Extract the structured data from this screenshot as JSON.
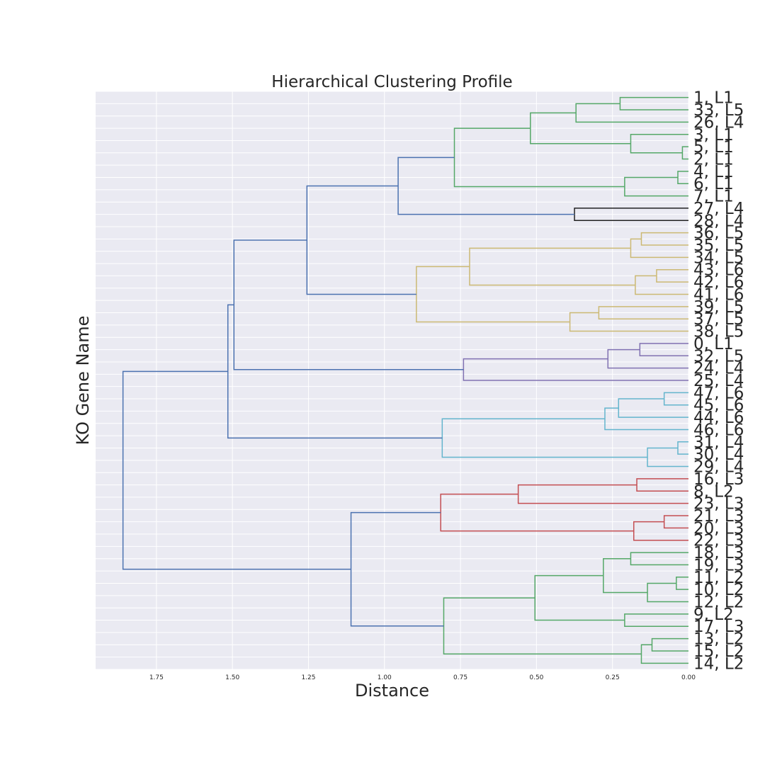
{
  "chart_data": {
    "type": "dendrogram",
    "title": "Hierarchical Clustering Profile",
    "xlabel": "Distance",
    "ylabel": "KO Gene Name",
    "orientation": "left",
    "xlim": [
      1.95,
      0.0
    ],
    "xticks": [
      1.75,
      1.5,
      1.25,
      1.0,
      0.75,
      0.5,
      0.25,
      0.0
    ],
    "xtick_labels": [
      "1.75",
      "1.50",
      "1.25",
      "1.00",
      "0.75",
      "0.50",
      "0.25",
      "0.00"
    ],
    "grid": true,
    "colors": {
      "background": "#eaeaf2",
      "grid": "#ffffff",
      "root": "#4c72b0",
      "green": "#55a868",
      "black": "#222222",
      "yellow": "#ccb974",
      "purple": "#8172b2",
      "cyan": "#64b5cd",
      "red": "#c44e52"
    },
    "leaves": [
      "1, L1",
      "33, L5",
      "26, L4",
      "3, L1",
      "5, L1",
      "2, L1",
      "4, L1",
      "6, L1",
      "7, L1",
      "27, L4",
      "28, L4",
      "36, L5",
      "35, L5",
      "34, L5",
      "43, L6",
      "42, L6",
      "41, L6",
      "39, L5",
      "37, L5",
      "38, L5",
      "0, L1",
      "32, L5",
      "24, L4",
      "25, L4",
      "47, L6",
      "45, L6",
      "44, L6",
      "46, L6",
      "31, L4",
      "30, L4",
      "29, L4",
      "16, L3",
      "8, L2",
      "23, L3",
      "21, L3",
      "20, L3",
      "22, L3",
      "18, L3",
      "19, L3",
      "11, L2",
      "10, L2",
      "12, L2",
      "9, L2",
      "17, L3",
      "13, L2",
      "15, L2",
      "14, L2"
    ],
    "merges": [
      {
        "id": "A1",
        "a": "1, L1",
        "b": "33, L5",
        "d": 0.225,
        "color": "green"
      },
      {
        "id": "A2",
        "a": "A1",
        "b": "26, L4",
        "d": 0.37,
        "color": "green"
      },
      {
        "id": "A3",
        "a": "5, L1",
        "b": "2, L1",
        "d": 0.02,
        "color": "green"
      },
      {
        "id": "A4",
        "a": "3, L1",
        "b": "A3",
        "d": 0.19,
        "color": "green"
      },
      {
        "id": "A5",
        "a": "A2",
        "b": "A4",
        "d": 0.52,
        "color": "green"
      },
      {
        "id": "A6",
        "a": "4, L1",
        "b": "6, L1",
        "d": 0.035,
        "color": "green"
      },
      {
        "id": "A7",
        "a": "A6",
        "b": "7, L1",
        "d": 0.21,
        "color": "green"
      },
      {
        "id": "A8",
        "a": "A5",
        "b": "A7",
        "d": 0.77,
        "color": "green"
      },
      {
        "id": "B1",
        "a": "27, L4",
        "b": "28, L4",
        "d": 0.375,
        "color": "black"
      },
      {
        "id": "C1",
        "a": "A8",
        "b": "B1",
        "d": 0.955,
        "color": "root"
      },
      {
        "id": "D1",
        "a": "36, L5",
        "b": "35, L5",
        "d": 0.155,
        "color": "yellow"
      },
      {
        "id": "D2",
        "a": "D1",
        "b": "34, L5",
        "d": 0.19,
        "color": "yellow"
      },
      {
        "id": "D3",
        "a": "43, L6",
        "b": "42, L6",
        "d": 0.105,
        "color": "yellow"
      },
      {
        "id": "D4",
        "a": "D3",
        "b": "41, L6",
        "d": 0.175,
        "color": "yellow"
      },
      {
        "id": "D5",
        "a": "D2",
        "b": "D4",
        "d": 0.72,
        "color": "yellow"
      },
      {
        "id": "D6",
        "a": "39, L5",
        "b": "37, L5",
        "d": 0.295,
        "color": "yellow"
      },
      {
        "id": "D7",
        "a": "D6",
        "b": "38, L5",
        "d": 0.39,
        "color": "yellow"
      },
      {
        "id": "D8",
        "a": "D5",
        "b": "D7",
        "d": 0.895,
        "color": "yellow"
      },
      {
        "id": "C2",
        "a": "C1",
        "b": "D8",
        "d": 1.255,
        "color": "root"
      },
      {
        "id": "E1",
        "a": "0, L1",
        "b": "32, L5",
        "d": 0.16,
        "color": "purple"
      },
      {
        "id": "E2",
        "a": "E1",
        "b": "24, L4",
        "d": 0.265,
        "color": "purple"
      },
      {
        "id": "E3",
        "a": "E2",
        "b": "25, L4",
        "d": 0.74,
        "color": "purple"
      },
      {
        "id": "C3",
        "a": "C2",
        "b": "E3",
        "d": 1.495,
        "color": "root"
      },
      {
        "id": "F1",
        "a": "47, L6",
        "b": "45, L6",
        "d": 0.08,
        "color": "cyan"
      },
      {
        "id": "F2",
        "a": "F1",
        "b": "44, L6",
        "d": 0.23,
        "color": "cyan"
      },
      {
        "id": "F3",
        "a": "F2",
        "b": "46, L6",
        "d": 0.275,
        "color": "cyan"
      },
      {
        "id": "F4",
        "a": "31, L4",
        "b": "30, L4",
        "d": 0.035,
        "color": "cyan"
      },
      {
        "id": "F5",
        "a": "F4",
        "b": "29, L4",
        "d": 0.135,
        "color": "cyan"
      },
      {
        "id": "F6",
        "a": "F3",
        "b": "F5",
        "d": 0.81,
        "color": "cyan"
      },
      {
        "id": "C4",
        "a": "C3",
        "b": "F6",
        "d": 1.515,
        "color": "root"
      },
      {
        "id": "G1",
        "a": "16, L3",
        "b": "8, L2",
        "d": 0.17,
        "color": "red"
      },
      {
        "id": "G2",
        "a": "G1",
        "b": "23, L3",
        "d": 0.56,
        "color": "red"
      },
      {
        "id": "G3",
        "a": "21, L3",
        "b": "20, L3",
        "d": 0.08,
        "color": "red"
      },
      {
        "id": "G4",
        "a": "G3",
        "b": "22, L3",
        "d": 0.18,
        "color": "red"
      },
      {
        "id": "G5",
        "a": "G2",
        "b": "G4",
        "d": 0.815,
        "color": "red"
      },
      {
        "id": "H1",
        "a": "18, L3",
        "b": "19, L3",
        "d": 0.19,
        "color": "green"
      },
      {
        "id": "H2",
        "a": "11, L2",
        "b": "10, L2",
        "d": 0.04,
        "color": "green"
      },
      {
        "id": "H3",
        "a": "H2",
        "b": "12, L2",
        "d": 0.135,
        "color": "green"
      },
      {
        "id": "H4",
        "a": "H1",
        "b": "H3",
        "d": 0.28,
        "color": "green"
      },
      {
        "id": "H5",
        "a": "9, L2",
        "b": "17, L3",
        "d": 0.21,
        "color": "green"
      },
      {
        "id": "H6",
        "a": "H4",
        "b": "H5",
        "d": 0.505,
        "color": "green"
      },
      {
        "id": "H7",
        "a": "13, L2",
        "b": "15, L2",
        "d": 0.12,
        "color": "green"
      },
      {
        "id": "H8",
        "a": "H7",
        "b": "14, L2",
        "d": 0.155,
        "color": "green"
      },
      {
        "id": "H9",
        "a": "H6",
        "b": "H8",
        "d": 0.805,
        "color": "green"
      },
      {
        "id": "I1",
        "a": "G5",
        "b": "H9",
        "d": 1.11,
        "color": "root"
      },
      {
        "id": "ROOT",
        "a": "C4",
        "b": "I1",
        "d": 1.86,
        "color": "root"
      }
    ]
  }
}
